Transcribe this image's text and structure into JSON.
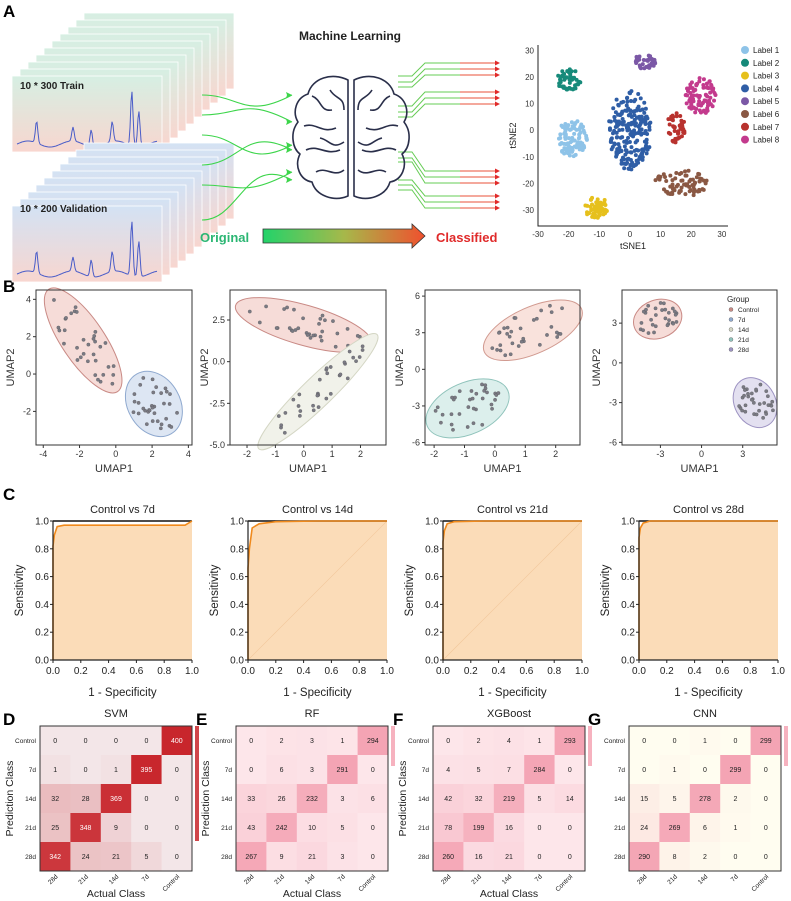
{
  "panel_labels": [
    "A",
    "B",
    "C",
    "D",
    "E",
    "F",
    "G"
  ],
  "panel_a": {
    "title": "Machine Learning",
    "train_label": "10 * 300  Train",
    "validation_label": "10 * 200  Validation",
    "original_label": "Original",
    "classified_label": "Classified",
    "colors": {
      "original": "#2bb673",
      "classified": "#e02a2a"
    }
  },
  "chart_data": [
    {
      "id": "tsne",
      "type": "scatter",
      "xlabel": "tSNE1",
      "ylabel": "tSNE2",
      "xlim": [
        -30,
        32
      ],
      "ylim": [
        -36,
        32
      ],
      "xticks": [
        -30,
        -20,
        -10,
        0,
        10,
        20,
        30
      ],
      "yticks": [
        -30,
        -20,
        -10,
        0,
        10,
        20,
        30
      ],
      "legend_placement": "right",
      "series": [
        {
          "name": "Label 1",
          "color": "#8ec3e8",
          "center": [
            -19,
            -3
          ],
          "spread": [
            5,
            7
          ],
          "n": 100
        },
        {
          "name": "Label 2",
          "color": "#168a7a",
          "center": [
            -20,
            19
          ],
          "spread": [
            4,
            4
          ],
          "n": 50
        },
        {
          "name": "Label 3",
          "color": "#e6c01c",
          "center": [
            -11,
            -29
          ],
          "spread": [
            4,
            4
          ],
          "n": 55
        },
        {
          "name": "Label 4",
          "color": "#2f5ea6",
          "center": [
            0,
            0
          ],
          "spread": [
            7,
            15
          ],
          "n": 210
        },
        {
          "name": "Label 5",
          "color": "#7b58a6",
          "center": [
            5,
            26
          ],
          "spread": [
            4,
            3
          ],
          "n": 35
        },
        {
          "name": "Label 6",
          "color": "#8a5843",
          "center": [
            17,
            -20
          ],
          "spread": [
            9,
            5
          ],
          "n": 75
        },
        {
          "name": "Label 7",
          "color": "#b8322e",
          "center": [
            15,
            1
          ],
          "spread": [
            3,
            6
          ],
          "n": 45
        },
        {
          "name": "Label 8",
          "color": "#c33a8d",
          "center": [
            23,
            13
          ],
          "spread": [
            5,
            7
          ],
          "n": 85
        }
      ]
    },
    {
      "id": "umap1",
      "type": "scatter",
      "xlabel": "UMAP1",
      "ylabel": "UMAP2",
      "xlim": [
        -4.4,
        4.2
      ],
      "ylim": [
        -3.8,
        4.5
      ],
      "xticks": [
        -4,
        -2,
        0,
        2,
        4
      ],
      "yticks": [
        -2,
        0,
        2,
        4
      ],
      "ytick_labels": [
        "-2",
        "0",
        "2",
        "4"
      ],
      "xtick_labels": [
        "-4",
        "-2",
        "0",
        "2",
        "4"
      ],
      "groups": [
        {
          "name": "Control",
          "fill": "#f6dcd8",
          "stroke": "#c98a85",
          "center": [
            -1.8,
            1.8
          ],
          "semi": [
            3.4,
            1.15
          ],
          "tilt": 56,
          "n": 34
        },
        {
          "name": "7d",
          "fill": "#dde6f3",
          "stroke": "#8fa9cf",
          "center": [
            2.1,
            -1.6
          ],
          "semi": [
            1.9,
            1.4
          ],
          "tilt": 60,
          "n": 34
        }
      ]
    },
    {
      "id": "umap2",
      "type": "scatter",
      "xlabel": "UMAP1",
      "ylabel": "UMAP2",
      "xlim": [
        -2.6,
        2.9
      ],
      "ylim": [
        -5.0,
        4.3
      ],
      "xticks": [
        -2,
        -1,
        0,
        1,
        2
      ],
      "yticks": [
        -5,
        -2.5,
        0,
        2.5
      ],
      "ytick_labels": [
        "-5.0",
        "-2.5",
        "0.0",
        "2.5"
      ],
      "xtick_labels": [
        "-2",
        "-1",
        "0",
        "1",
        "2"
      ],
      "groups": [
        {
          "name": "Control",
          "fill": "#f6dcd8",
          "stroke": "#c98a85",
          "center": [
            0.0,
            2.2
          ],
          "semi": [
            2.5,
            1.2
          ],
          "tilt": 16,
          "n": 34
        },
        {
          "name": "14d",
          "fill": "#f1f2ea",
          "stroke": "#d4d6c4",
          "center": [
            0.5,
            -1.8
          ],
          "semi": [
            2.9,
            0.9
          ],
          "tilt": -44,
          "n": 34
        }
      ]
    },
    {
      "id": "umap3",
      "type": "scatter",
      "xlabel": "UMAP1",
      "ylabel": "UMAP2",
      "xlim": [
        -2.3,
        2.8
      ],
      "ylim": [
        -6.2,
        6.5
      ],
      "xticks": [
        -2,
        -1,
        0,
        1,
        2
      ],
      "yticks": [
        -6,
        -3,
        0,
        3,
        6
      ],
      "ytick_labels": [
        "-6",
        "-3",
        "0",
        "3",
        "6"
      ],
      "xtick_labels": [
        "-2",
        "-1",
        "0",
        "1",
        "2"
      ],
      "groups": [
        {
          "name": "Control",
          "fill": "#f9e2dc",
          "stroke": "#d19a90",
          "center": [
            1.25,
            3.2
          ],
          "semi": [
            1.75,
            1.9
          ],
          "tilt": -24,
          "n": 34
        },
        {
          "name": "21d",
          "fill": "#dcefec",
          "stroke": "#8fc3bb",
          "center": [
            -0.9,
            -3.2
          ],
          "semi": [
            1.45,
            2.1
          ],
          "tilt": -24,
          "n": 34
        }
      ]
    },
    {
      "id": "umap4",
      "type": "scatter",
      "xlabel": "UMAP1",
      "ylabel": "UMAP2",
      "xlim": [
        -5.8,
        5.5
      ],
      "ylim": [
        -6.2,
        5.5
      ],
      "xticks": [
        -3,
        0,
        3
      ],
      "yticks": [
        -6,
        -3,
        0,
        3
      ],
      "ytick_labels": [
        "-6",
        "-3",
        "0",
        "3"
      ],
      "xtick_labels": [
        "-3",
        "0",
        "3"
      ],
      "legend": {
        "title": "Group",
        "items": [
          {
            "name": "Control",
            "color": "#c98a85"
          },
          {
            "name": "7d",
            "color": "#8fa9cf"
          },
          {
            "name": "14d",
            "color": "#d4d6c4"
          },
          {
            "name": "21d",
            "color": "#8fc3bb"
          },
          {
            "name": "28d",
            "color": "#9d93c2"
          }
        ],
        "placement": "top-right"
      },
      "groups": [
        {
          "name": "Control",
          "fill": "#f6dcd8",
          "stroke": "#c98a85",
          "center": [
            -3.2,
            3.3
          ],
          "semi": [
            1.8,
            1.45
          ],
          "tilt": -20,
          "n": 30
        },
        {
          "name": "28d",
          "fill": "#e3e0f0",
          "stroke": "#9d93c2",
          "center": [
            3.9,
            -3.0
          ],
          "semi": [
            1.9,
            1.55
          ],
          "tilt": 62,
          "n": 34
        }
      ]
    },
    {
      "id": "roc",
      "type": "area",
      "xlabel": "1 - Specificity",
      "ylabel": "Sensitivity",
      "xlim": [
        0,
        1
      ],
      "ylim": [
        0,
        1
      ],
      "ticks": [
        0,
        0.2,
        0.4,
        0.6,
        0.8,
        1.0
      ],
      "tick_labels": [
        "0.0",
        "0.2",
        "0.4",
        "0.6",
        "0.8",
        "1.0"
      ],
      "curve_color": "#f08a1c",
      "fill_color": "#fbdcb8",
      "panels": [
        {
          "title": "Control vs 7d",
          "curve": [
            [
              0,
              0
            ],
            [
              0,
              0.82
            ],
            [
              0.01,
              0.9
            ],
            [
              0.03,
              0.96
            ],
            [
              0.08,
              0.97
            ],
            [
              0.95,
              0.97
            ],
            [
              1,
              1
            ]
          ],
          "diagonal": false
        },
        {
          "title": "Control vs 14d",
          "curve": [
            [
              0,
              0
            ],
            [
              0,
              0.66
            ],
            [
              0.01,
              0.8
            ],
            [
              0.03,
              0.95
            ],
            [
              0.08,
              0.98
            ],
            [
              0.2,
              0.995
            ],
            [
              0.5,
              1
            ],
            [
              1,
              1
            ]
          ],
          "diagonal": true
        },
        {
          "title": "Control vs 21d",
          "curve": [
            [
              0,
              0
            ],
            [
              0,
              0.85
            ],
            [
              0.01,
              0.93
            ],
            [
              0.03,
              0.98
            ],
            [
              0.08,
              0.995
            ],
            [
              0.3,
              1
            ],
            [
              1,
              1
            ]
          ],
          "diagonal": true
        },
        {
          "title": "Control vs 28d",
          "curve": [
            [
              0,
              0
            ],
            [
              0,
              0.88
            ],
            [
              0.01,
              0.95
            ],
            [
              0.03,
              0.985
            ],
            [
              0.08,
              1
            ],
            [
              1,
              1
            ]
          ],
          "diagonal": false
        }
      ]
    },
    {
      "id": "confusion",
      "type": "heatmap",
      "xlabel": "Actual Class",
      "ylabel": "Prediction Class",
      "columns": [
        "28d",
        "21d",
        "14d",
        "7d",
        "Control"
      ],
      "rows": [
        "Control",
        "7d",
        "14d",
        "21d",
        "28d"
      ],
      "matrices": [
        {
          "title": "SVM",
          "max_color": "#c8262c",
          "min_color": "#f3e6e8",
          "values": [
            [
              0,
              0,
              0,
              0,
              400
            ],
            [
              1,
              0,
              1,
              395,
              0
            ],
            [
              32,
              28,
              369,
              0,
              0
            ],
            [
              25,
              348,
              9,
              0,
              0
            ],
            [
              342,
              24,
              21,
              5,
              0
            ]
          ],
          "show_xlabel": true,
          "show_ylabel": true
        },
        {
          "title": "RF",
          "max_color": "#f4a4b4",
          "min_color": "#fde6ea",
          "values": [
            [
              0,
              2,
              3,
              1,
              294
            ],
            [
              0,
              6,
              3,
              291,
              0
            ],
            [
              33,
              26,
              232,
              3,
              6
            ],
            [
              43,
              242,
              10,
              5,
              0
            ],
            [
              267,
              9,
              21,
              3,
              0
            ]
          ],
          "show_xlabel": true,
          "show_ylabel": true
        },
        {
          "title": "XGBoost",
          "max_color": "#f4a4b4",
          "min_color": "#fde6ea",
          "values": [
            [
              0,
              2,
              4,
              1,
              293
            ],
            [
              4,
              5,
              7,
              284,
              0
            ],
            [
              42,
              32,
              219,
              5,
              14
            ],
            [
              78,
              199,
              16,
              0,
              0
            ],
            [
              260,
              16,
              21,
              0,
              0
            ]
          ],
          "show_xlabel": true,
          "show_ylabel": true
        },
        {
          "title": "CNN",
          "max_color": "#f4a4b4",
          "min_color": "#fffdf0",
          "values": [
            [
              0,
              0,
              1,
              0,
              299
            ],
            [
              0,
              1,
              0,
              299,
              0
            ],
            [
              15,
              5,
              278,
              2,
              0
            ],
            [
              24,
              269,
              6,
              1,
              0
            ],
            [
              290,
              8,
              2,
              0,
              0
            ]
          ],
          "show_xlabel": false,
          "show_ylabel": false
        }
      ]
    }
  ]
}
